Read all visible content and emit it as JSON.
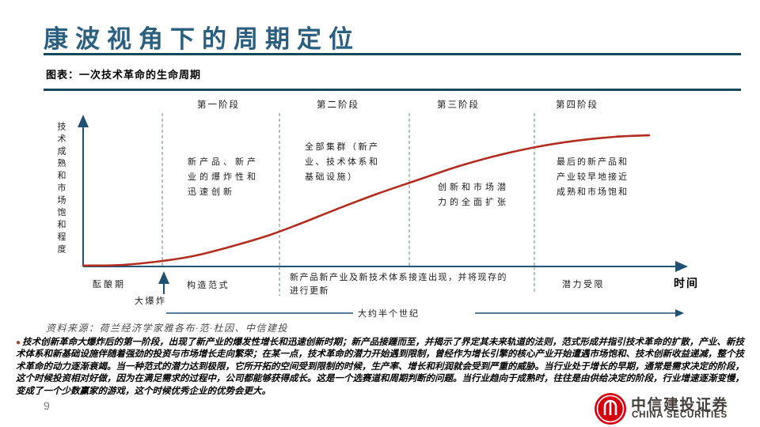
{
  "page": {
    "title": "康波视角下的周期定位",
    "figure_caption": "图表：一次技术革命的生命周期",
    "source": "资料来源：荷兰经济学家雅各布·范·杜因、中信建投",
    "page_number": "9",
    "logo": {
      "name_cn": "中信建投证券",
      "name_en": "CHINA SECURITIES",
      "brand_red": "#d7000f"
    }
  },
  "chart_data": {
    "type": "line",
    "title": "一次技术革命的生命周期",
    "xlabel": "时间",
    "ylabel": "技术成熟和市场饱和程度",
    "x_unit": "percent_of_time_axis",
    "y_unit": "percent_of_maturity",
    "x": [
      0,
      7,
      14,
      20,
      27,
      33,
      38,
      45,
      52,
      59,
      66,
      73,
      80,
      87,
      94,
      100
    ],
    "y": [
      1.7,
      2.2,
      5,
      8.9,
      16.1,
      23.3,
      30.6,
      41.7,
      52.2,
      61.7,
      71.1,
      78.9,
      85,
      89.4,
      92.2,
      93.3
    ],
    "curve_color": "#b22d20",
    "stage_boundaries_x": [
      13,
      34.7,
      57.6,
      79.7
    ],
    "stages": [
      {
        "label": "第一阶段",
        "description": "新产品、新产业的爆炸性和迅速创新"
      },
      {
        "label": "第二阶段",
        "description": "全部集群（新产业、技术体系和基础设施）"
      },
      {
        "label": "第三阶段",
        "description": "创新和市场潜力的全面扩张"
      },
      {
        "label": "第四阶段",
        "description": "最后的新产品和产业较早地接近成熟和市场饱和"
      }
    ],
    "x_axis_annotations": [
      "酝酿期",
      "构造范式",
      "新产品新产业及新技术体系接连出现，并将现存的进行更新",
      "潜力受限"
    ],
    "event_marker": "大爆炸",
    "time_span_label": "大约半个世纪",
    "legend": "none",
    "grid": "off"
  },
  "chart_labels": {
    "y_axis": "技术成熟和市场饱和程度",
    "x_axis": "时间",
    "stage1_title": "第一阶段",
    "stage2_title": "第二阶段",
    "stage3_title": "第三阶段",
    "stage4_title": "第四阶段",
    "stage1_desc": "新产品、新产\n业的爆炸性和\n迅速创新",
    "stage2_desc": "全部集群（新产\n业、技术体系和\n基础设施）",
    "stage3_desc": "创新和市场潜\n力的全面扩张",
    "stage4_desc": "最后的新产品和\n产业较早地接近\n成熟和市场饱和",
    "incubation": "酝酿期",
    "big_bang": "大爆炸",
    "paradigm": "构造范式",
    "renewal": "新产品新产业及新技术体系接连出现，并将现存的\n进行更新",
    "limited": "潜力受限",
    "span": "大约半个世纪"
  },
  "body": {
    "bullet": "●",
    "text": "技术创新革命大爆炸后的第一阶段，出现了新产业的爆发性增长和迅速创新时期；新产品接踵而至，并揭示了界定其未来轨道的法则，范式形成并指引技术革命的扩散，产业、新技术体系和新基础设施伴随着强劲的投资与市场增长走向繁荣；在某一点，技术革命的潜力开始遇到限制，曾经作为增长引擎的核心产业开始遭遇市场饱和、技术创新收益递减，整个技术革命的动力逐渐衰竭。当一种范式的潜力达到极限，它所开拓的空间受到限制的时候，生产率、增长和利润就会受到严重的威胁。当行业处于增长的早期，通常是需求决定的阶段，这个时候投资相对好做，因为在满足需求的过程中，公司都能够获得成长。这是一个选赛道和周期判断的问题。当行业趋向于成熟时，往往是由供给决定的阶段，行业增速逐渐变慢，变成了一个少数赢家的游戏，这个时候优秀企业的优势会更大。"
  }
}
